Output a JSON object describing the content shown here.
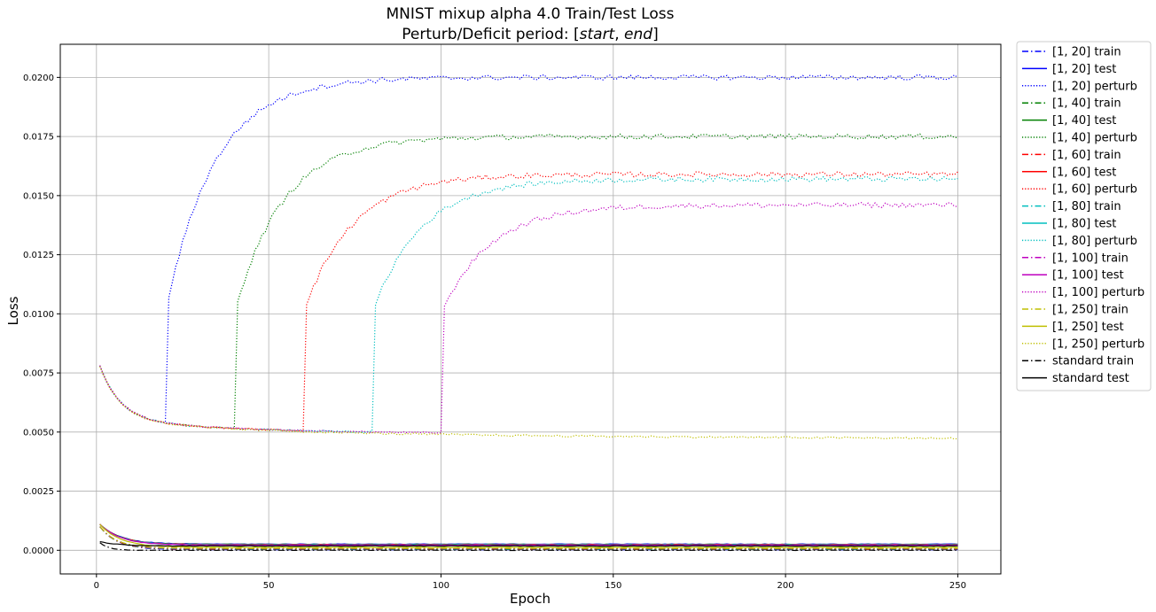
{
  "chart_data": {
    "type": "line",
    "title_line1": "MNIST mixup alpha 4.0 Train/Test Loss",
    "title_line2_prefix": "Perturb/Deficit period: [",
    "title_line2_start": "start",
    "title_line2_sep": ", ",
    "title_line2_end": "end",
    "title_line2_suffix": "]",
    "xlabel": "Epoch",
    "ylabel": "Loss",
    "xlim": [
      -10.5,
      262.5
    ],
    "ylim": [
      -0.001,
      0.0214
    ],
    "xticks": [
      0,
      50,
      100,
      150,
      200,
      250
    ],
    "xtick_labels": [
      "0",
      "50",
      "100",
      "150",
      "200",
      "250"
    ],
    "yticks": [
      0.0,
      0.0025,
      0.005,
      0.0075,
      0.01,
      0.0125,
      0.015,
      0.0175,
      0.02
    ],
    "ytick_labels": [
      "0.0000",
      "0.0025",
      "0.0050",
      "0.0075",
      "0.0100",
      "0.0125",
      "0.0150",
      "0.0175",
      "0.0200"
    ],
    "grid": true,
    "legend_position": "outside-right",
    "epochs": {
      "start": 1,
      "end": 250
    },
    "series": [
      {
        "name": "[1, 20] train",
        "color": "#0000ff",
        "style": "dashdot",
        "kind": "train",
        "deficit_end": 20,
        "final": 3e-05
      },
      {
        "name": "[1, 20] test",
        "color": "#0000ff",
        "style": "solid",
        "kind": "test",
        "deficit_end": 20,
        "final": 0.00026
      },
      {
        "name": "[1, 20] perturb",
        "color": "#0000ff",
        "style": "dotted",
        "kind": "perturb",
        "deficit_end": 20,
        "plateau": 0.02
      },
      {
        "name": "[1, 40] train",
        "color": "#008000",
        "style": "dashdot",
        "kind": "train",
        "deficit_end": 40,
        "final": 4e-05
      },
      {
        "name": "[1, 40] test",
        "color": "#008000",
        "style": "solid",
        "kind": "test",
        "deficit_end": 40,
        "final": 0.00025
      },
      {
        "name": "[1, 40] perturb",
        "color": "#008000",
        "style": "dotted",
        "kind": "perturb",
        "deficit_end": 40,
        "plateau": 0.0175
      },
      {
        "name": "[1, 60] train",
        "color": "#ff0000",
        "style": "dashdot",
        "kind": "train",
        "deficit_end": 60,
        "final": 5e-05
      },
      {
        "name": "[1, 60] test",
        "color": "#ff0000",
        "style": "solid",
        "kind": "test",
        "deficit_end": 60,
        "final": 0.00024
      },
      {
        "name": "[1, 60] perturb",
        "color": "#ff0000",
        "style": "dotted",
        "kind": "perturb",
        "deficit_end": 60,
        "plateau": 0.0159
      },
      {
        "name": "[1, 80] train",
        "color": "#00bfbf",
        "style": "dashdot",
        "kind": "train",
        "deficit_end": 80,
        "final": 6e-05
      },
      {
        "name": "[1, 80] test",
        "color": "#00bfbf",
        "style": "solid",
        "kind": "test",
        "deficit_end": 80,
        "final": 0.00023
      },
      {
        "name": "[1, 80] perturb",
        "color": "#00bfbf",
        "style": "dotted",
        "kind": "perturb",
        "deficit_end": 80,
        "plateau": 0.0157
      },
      {
        "name": "[1, 100] train",
        "color": "#bf00bf",
        "style": "dashdot",
        "kind": "train",
        "deficit_end": 100,
        "final": 7e-05
      },
      {
        "name": "[1, 100] test",
        "color": "#bf00bf",
        "style": "solid",
        "kind": "test",
        "deficit_end": 100,
        "final": 0.00022
      },
      {
        "name": "[1, 100] perturb",
        "color": "#bf00bf",
        "style": "dotted",
        "kind": "perturb",
        "deficit_end": 100,
        "plateau": 0.0146
      },
      {
        "name": "[1, 250] train",
        "color": "#bfbf00",
        "style": "dashdot",
        "kind": "train",
        "deficit_end": 250,
        "final": 8e-05
      },
      {
        "name": "[1, 250] test",
        "color": "#bfbf00",
        "style": "solid",
        "kind": "test",
        "deficit_end": 250,
        "final": 0.00012
      },
      {
        "name": "[1, 250] perturb",
        "color": "#bfbf00",
        "style": "dotted",
        "kind": "perturb",
        "deficit_end": 250,
        "plateau": 0.0048
      },
      {
        "name": "standard train",
        "color": "#000000",
        "style": "dashdot",
        "kind": "std_train",
        "final": 0.0
      },
      {
        "name": "standard test",
        "color": "#000000",
        "style": "solid",
        "kind": "std_test",
        "final": 0.00018
      }
    ]
  }
}
